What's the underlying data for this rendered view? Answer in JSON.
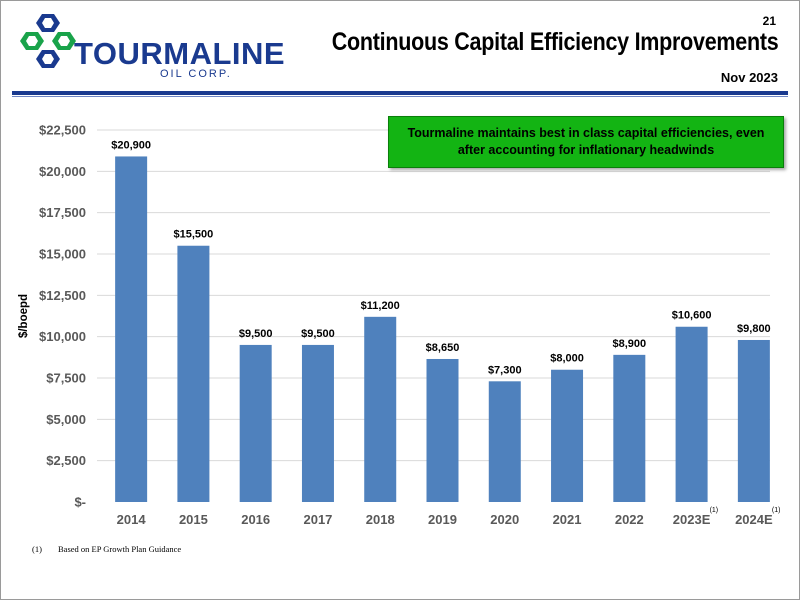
{
  "header": {
    "page_number": "21",
    "title": "Continuous Capital Efficiency Improvements",
    "date": "Nov 2023",
    "logo_name": "TOURMALINE",
    "logo_subtitle": "OIL CORP."
  },
  "callout": {
    "text": "Tourmaline maintains best in class capital efficiencies, even after accounting for inflationary headwinds"
  },
  "footnote": {
    "marker": "(1)",
    "text": "Based on EP Growth Plan Guidance"
  },
  "colors": {
    "bar": "#4f81bd",
    "brand": "#1a3a8f",
    "callout_bg": "#13b413"
  },
  "chart_data": {
    "type": "bar",
    "title": "",
    "xlabel": "",
    "ylabel": "$/boepd",
    "ylim": [
      0,
      22500
    ],
    "yticks": [
      0,
      2500,
      5000,
      7500,
      10000,
      12500,
      15000,
      17500,
      20000,
      22500
    ],
    "ytick_labels": [
      "$-",
      "$2,500",
      "$5,000",
      "$7,500",
      "$10,000",
      "$12,500",
      "$15,000",
      "$17,500",
      "$20,000",
      "$22,500"
    ],
    "categories": [
      "2014",
      "2015",
      "2016",
      "2017",
      "2018",
      "2019",
      "2020",
      "2021",
      "2022",
      "2023E",
      "2024E"
    ],
    "category_footnotes": [
      "",
      "",
      "",
      "",
      "",
      "",
      "",
      "",
      "",
      "(1)",
      "(1)"
    ],
    "values": [
      20900,
      15500,
      9500,
      9500,
      11200,
      8650,
      7300,
      8000,
      8900,
      10600,
      9800
    ],
    "data_labels": [
      "$20,900",
      "$15,500",
      "$9,500",
      "$9,500",
      "$11,200",
      "$8,650",
      "$7,300",
      "$8,000",
      "$8,900",
      "$10,600",
      "$9,800"
    ],
    "grid": true,
    "legend": "none"
  }
}
